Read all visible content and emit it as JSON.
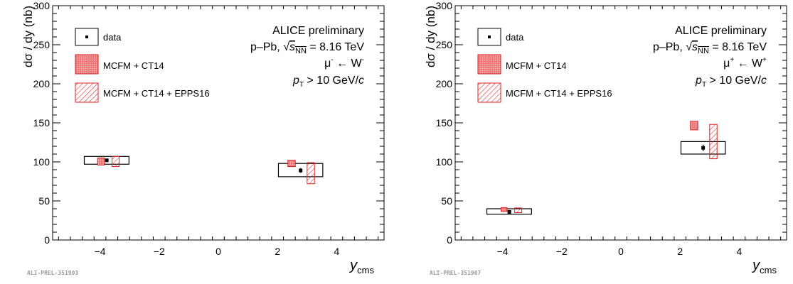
{
  "panels": [
    {
      "prel_id": "ALI-PREL-351903",
      "header": "ALICE preliminary",
      "system_prefix": "p–Pb, ",
      "sqrt_symbol": "√",
      "energy_var": "s",
      "energy_sub": "NN",
      "energy_value": " = 8.16 TeV",
      "channel_mu": "μ",
      "channel_mu_sup": "-",
      "channel_arrow": " ← W",
      "channel_w_sup": "-",
      "cut_var": "p",
      "cut_sub": "T",
      "cut_rest": " > 10 GeV/",
      "cut_c": "c",
      "legend": [
        "data",
        "MCFM + CT14",
        "MCFM + CT14 + EPPS16"
      ],
      "chart_data": {
        "type": "scatter",
        "xlabel": "y",
        "xlabel_sub": "cms",
        "ylabel": "dσ / dy (nb)",
        "xlim": [
          -5.6,
          5.6
        ],
        "ylim": [
          0,
          300
        ],
        "xticks": [
          -4,
          -2,
          0,
          2,
          4
        ],
        "yticks": [
          0,
          50,
          100,
          150,
          200,
          250,
          300
        ],
        "data": [
          {
            "x": -3.77,
            "y": 102,
            "stat_err": 2,
            "syst_box": {
              "x": [
                -4.53,
                -3.02
              ],
              "y": [
                97,
                107
              ]
            }
          },
          {
            "x": 2.78,
            "y": 89,
            "stat_err": 3,
            "syst_box": {
              "x": [
                2.03,
                3.53
              ],
              "y": [
                81,
                98
              ]
            }
          }
        ],
        "mcfm_ct14": [
          {
            "x": [
              -4.08,
              -3.85
            ],
            "y": [
              96,
              105
            ]
          },
          {
            "x": [
              2.35,
              2.6
            ],
            "y": [
              94,
              102
            ]
          }
        ],
        "mcfm_ct14_epps16": [
          {
            "x": [
              -3.59,
              -3.35
            ],
            "y": [
              94,
              107
            ]
          },
          {
            "x": [
              3.0,
              3.25
            ],
            "y": [
              72,
              99
            ]
          }
        ]
      }
    },
    {
      "prel_id": "ALI-PREL-351907",
      "header": "ALICE preliminary",
      "system_prefix": "p–Pb, ",
      "sqrt_symbol": "√",
      "energy_var": "s",
      "energy_sub": "NN",
      "energy_value": " = 8.16 TeV",
      "channel_mu": "μ",
      "channel_mu_sup": "+",
      "channel_arrow": " ← W",
      "channel_w_sup": "+",
      "cut_var": "p",
      "cut_sub": "T",
      "cut_rest": " > 10 GeV/",
      "cut_c": "c",
      "legend": [
        "data",
        "MCFM + CT14",
        "MCFM + CT14 + EPPS16"
      ],
      "chart_data": {
        "type": "scatter",
        "xlabel": "y",
        "xlabel_sub": "cms",
        "ylabel": "dσ / dy (nb)",
        "xlim": [
          -5.6,
          5.6
        ],
        "ylim": [
          0,
          300
        ],
        "xticks": [
          -4,
          -2,
          0,
          2,
          4
        ],
        "yticks": [
          0,
          50,
          100,
          150,
          200,
          250,
          300
        ],
        "data": [
          {
            "x": -3.77,
            "y": 36,
            "stat_err": 2,
            "syst_box": {
              "x": [
                -4.53,
                -3.02
              ],
              "y": [
                33,
                40
              ]
            }
          },
          {
            "x": 2.78,
            "y": 118,
            "stat_err": 4,
            "syst_box": {
              "x": [
                2.03,
                3.53
              ],
              "y": [
                110,
                126
              ]
            }
          }
        ],
        "mcfm_ct14": [
          {
            "x": [
              -4.05,
              -3.85
            ],
            "y": [
              36.5,
              41.5
            ]
          },
          {
            "x": [
              2.35,
              2.6
            ],
            "y": [
              141,
              152
            ]
          }
        ],
        "mcfm_ct14_epps16": [
          {
            "x": [
              -3.59,
              -3.35
            ],
            "y": [
              35,
              41
            ]
          },
          {
            "x": [
              3.0,
              3.25
            ],
            "y": [
              104,
              148
            ]
          }
        ]
      }
    }
  ],
  "colors": {
    "ct14_fill": "#f07a7a",
    "ct14_stroke": "#d41e1e",
    "epps_stroke": "#e02020",
    "data": "#000000",
    "prel_text": "#9a9a9a"
  }
}
